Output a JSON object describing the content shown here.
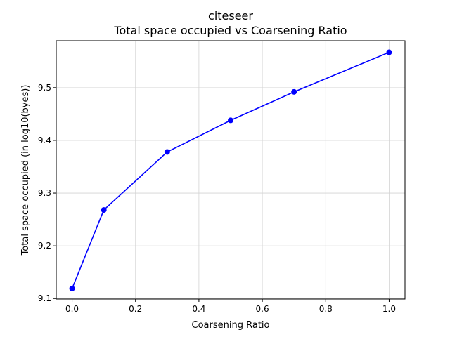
{
  "chart_data": {
    "type": "line",
    "title": "citeseer",
    "subtitle": "Total space occupied vs Coarsening Ratio",
    "xlabel": "Coarsening Ratio",
    "ylabel": "Total space occupied (in log10(byes))",
    "x": [
      0.0,
      0.1,
      0.3,
      0.5,
      0.7,
      1.0
    ],
    "series": [
      {
        "values": [
          9.119,
          9.268,
          9.378,
          9.438,
          9.492,
          9.567
        ],
        "color": "#0000ff",
        "marker": "circle"
      }
    ],
    "xlim": [
      -0.05,
      1.05
    ],
    "ylim": [
      9.099,
      9.589
    ],
    "xticks": [
      0.0,
      0.2,
      0.4,
      0.6,
      0.8,
      1.0
    ],
    "xtick_labels": [
      "0.0",
      "0.2",
      "0.4",
      "0.6",
      "0.8",
      "1.0"
    ],
    "yticks": [
      9.1,
      9.2,
      9.3,
      9.4,
      9.5
    ],
    "ytick_labels": [
      "9.1",
      "9.2",
      "9.3",
      "9.4",
      "9.5"
    ],
    "grid": true,
    "legend": false
  }
}
